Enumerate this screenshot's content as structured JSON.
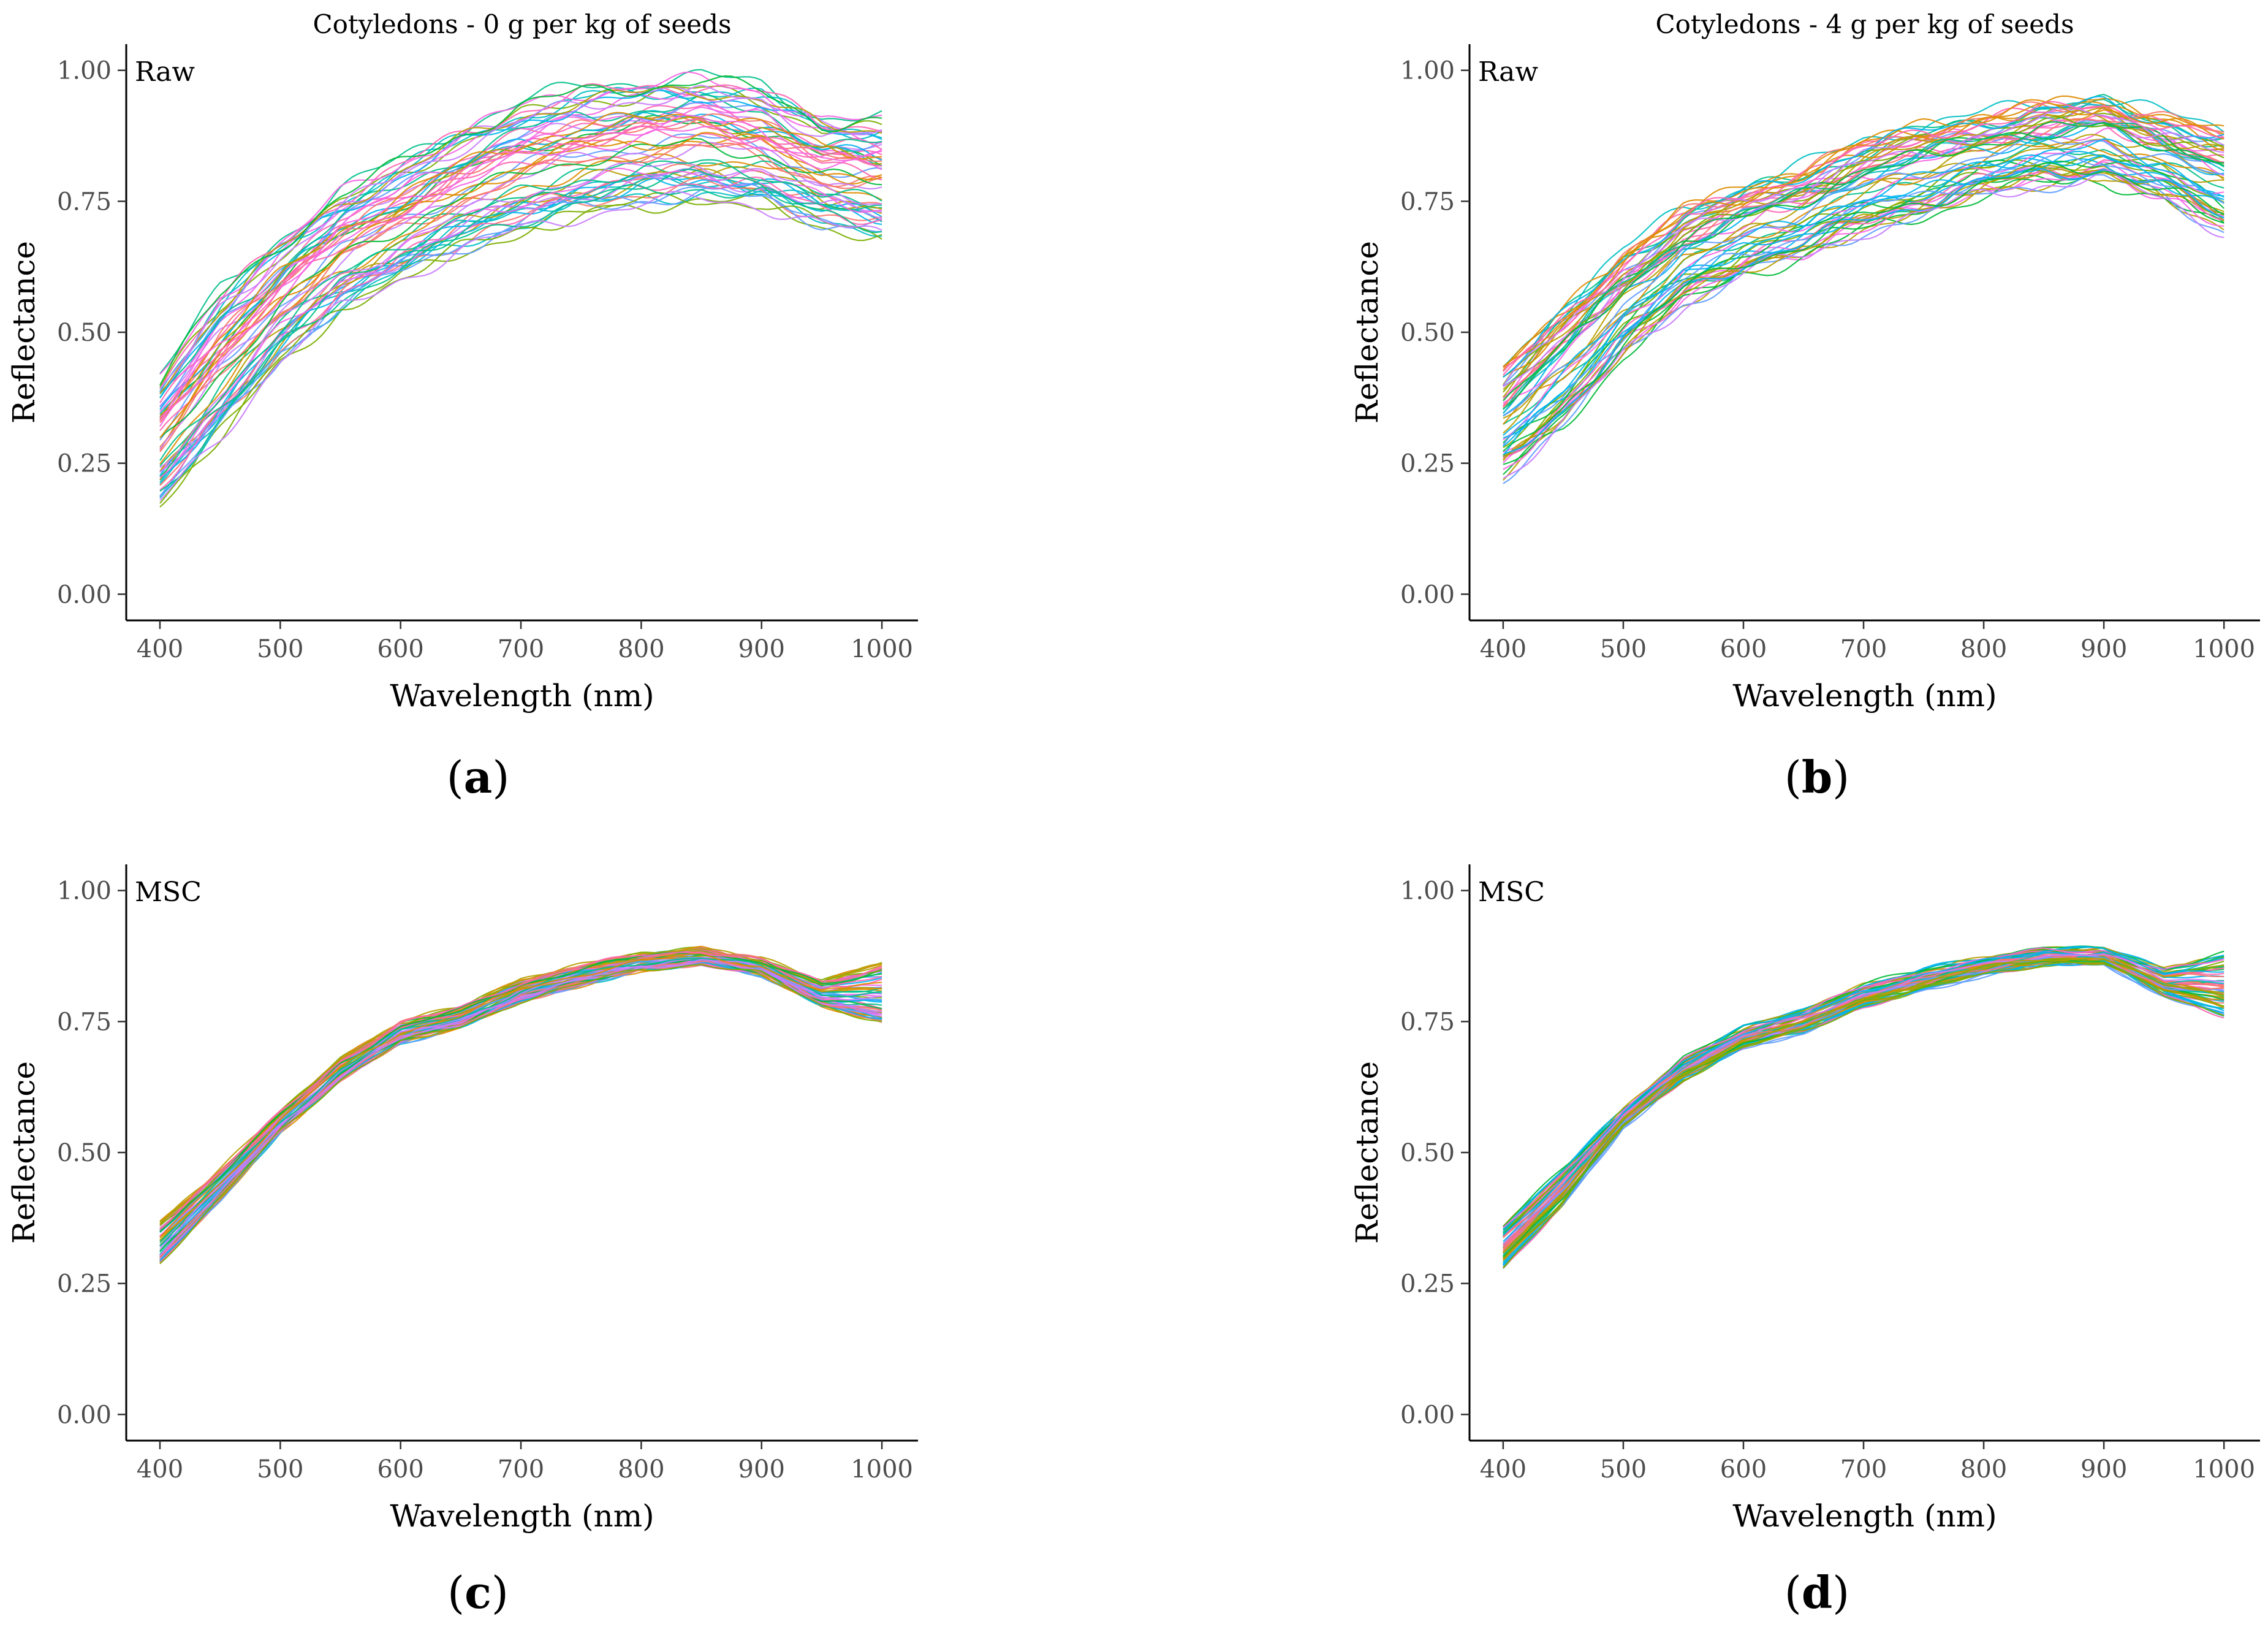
{
  "figure": {
    "panel_labels": [
      {
        "open": "(",
        "letter": "a",
        "close": ")"
      },
      {
        "open": "(",
        "letter": "b",
        "close": ")"
      },
      {
        "open": "(",
        "letter": "c",
        "close": ")"
      },
      {
        "open": "(",
        "letter": "d",
        "close": ")"
      }
    ]
  },
  "chart_data": [
    {
      "type": "line",
      "title": "Cotyledons - 0 g per kg of seeds",
      "annotation": "Raw",
      "xlabel": "Wavelength (nm)",
      "ylabel": "Reflectance",
      "xlim": [
        372,
        1030
      ],
      "ylim": [
        -0.05,
        1.05
      ],
      "xticks": [
        400,
        500,
        600,
        700,
        800,
        900,
        1000
      ],
      "yticks": [
        0.0,
        0.25,
        0.5,
        0.75,
        1.0
      ],
      "ytick_labels": [
        "0.00",
        "0.25",
        "0.50",
        "0.75",
        "1.00"
      ],
      "grid": false,
      "series_count": 60,
      "x_range": [
        400,
        1000
      ],
      "envelope": {
        "x": [
          400,
          450,
          500,
          550,
          600,
          650,
          700,
          750,
          800,
          850,
          900,
          950,
          1000
        ],
        "low": [
          0.17,
          0.3,
          0.44,
          0.54,
          0.6,
          0.65,
          0.69,
          0.72,
          0.74,
          0.75,
          0.74,
          0.7,
          0.68
        ],
        "high": [
          0.43,
          0.59,
          0.69,
          0.78,
          0.84,
          0.9,
          0.95,
          0.98,
          0.99,
          1.0,
          0.98,
          0.92,
          0.92
        ]
      },
      "colors": [
        "#F8766D",
        "#DE8C00",
        "#B79F00",
        "#7CAE00",
        "#00BA38",
        "#00C08B",
        "#00BFC4",
        "#00B4F0",
        "#619CFF",
        "#C77CFF",
        "#F564E3",
        "#FF64B0"
      ]
    },
    {
      "type": "line",
      "title": "Cotyledons - 4 g per kg of seeds",
      "annotation": "Raw",
      "xlabel": "Wavelength (nm)",
      "ylabel": "Reflectance",
      "xlim": [
        372,
        1030
      ],
      "ylim": [
        -0.05,
        1.05
      ],
      "xticks": [
        400,
        500,
        600,
        700,
        800,
        900,
        1000
      ],
      "yticks": [
        0.0,
        0.25,
        0.5,
        0.75,
        1.0
      ],
      "ytick_labels": [
        "0.00",
        "0.25",
        "0.50",
        "0.75",
        "1.00"
      ],
      "grid": false,
      "series_count": 60,
      "x_range": [
        400,
        1000
      ],
      "envelope": {
        "x": [
          400,
          450,
          500,
          550,
          600,
          650,
          700,
          750,
          800,
          850,
          900,
          950,
          1000
        ],
        "low": [
          0.22,
          0.32,
          0.45,
          0.55,
          0.61,
          0.64,
          0.69,
          0.72,
          0.76,
          0.78,
          0.79,
          0.75,
          0.69
        ],
        "high": [
          0.44,
          0.55,
          0.66,
          0.74,
          0.78,
          0.82,
          0.87,
          0.9,
          0.92,
          0.94,
          0.95,
          0.92,
          0.89
        ]
      },
      "colors": [
        "#F8766D",
        "#DE8C00",
        "#B79F00",
        "#7CAE00",
        "#00BA38",
        "#00C08B",
        "#00BFC4",
        "#00B4F0",
        "#619CFF",
        "#C77CFF",
        "#F564E3",
        "#FF64B0"
      ]
    },
    {
      "type": "line",
      "title": "",
      "annotation": "MSC",
      "xlabel": "Wavelength (nm)",
      "ylabel": "Reflectance",
      "xlim": [
        372,
        1030
      ],
      "ylim": [
        -0.05,
        1.05
      ],
      "xticks": [
        400,
        500,
        600,
        700,
        800,
        900,
        1000
      ],
      "yticks": [
        0.0,
        0.25,
        0.5,
        0.75,
        1.0
      ],
      "ytick_labels": [
        "0.00",
        "0.25",
        "0.50",
        "0.75",
        "1.00"
      ],
      "grid": false,
      "series_count": 60,
      "x_range": [
        400,
        1000
      ],
      "envelope": {
        "x": [
          400,
          450,
          500,
          550,
          600,
          650,
          700,
          750,
          800,
          850,
          900,
          950,
          1000
        ],
        "low": [
          0.29,
          0.41,
          0.54,
          0.64,
          0.71,
          0.74,
          0.79,
          0.82,
          0.85,
          0.86,
          0.84,
          0.78,
          0.75
        ],
        "high": [
          0.37,
          0.47,
          0.58,
          0.68,
          0.75,
          0.78,
          0.83,
          0.86,
          0.88,
          0.89,
          0.87,
          0.83,
          0.87
        ]
      },
      "colors": [
        "#F8766D",
        "#DE8C00",
        "#B79F00",
        "#7CAE00",
        "#00BA38",
        "#00C08B",
        "#00BFC4",
        "#00B4F0",
        "#619CFF",
        "#C77CFF",
        "#F564E3",
        "#FF64B0"
      ]
    },
    {
      "type": "line",
      "title": "",
      "annotation": "MSC",
      "xlabel": "Wavelength (nm)",
      "ylabel": "Reflectance",
      "xlim": [
        372,
        1030
      ],
      "ylim": [
        -0.05,
        1.05
      ],
      "xticks": [
        400,
        500,
        600,
        700,
        800,
        900,
        1000
      ],
      "yticks": [
        0.0,
        0.25,
        0.5,
        0.75,
        1.0
      ],
      "ytick_labels": [
        "0.00",
        "0.25",
        "0.50",
        "0.75",
        "1.00"
      ],
      "grid": false,
      "series_count": 60,
      "x_range": [
        400,
        1000
      ],
      "envelope": {
        "x": [
          400,
          450,
          500,
          550,
          600,
          650,
          700,
          750,
          800,
          850,
          900,
          950,
          1000
        ],
        "low": [
          0.28,
          0.4,
          0.55,
          0.64,
          0.7,
          0.73,
          0.78,
          0.81,
          0.84,
          0.86,
          0.86,
          0.8,
          0.76
        ],
        "high": [
          0.36,
          0.47,
          0.58,
          0.68,
          0.74,
          0.77,
          0.82,
          0.85,
          0.87,
          0.89,
          0.89,
          0.85,
          0.88
        ]
      },
      "colors": [
        "#F8766D",
        "#DE8C00",
        "#B79F00",
        "#7CAE00",
        "#00BA38",
        "#00C08B",
        "#00BFC4",
        "#00B4F0",
        "#619CFF",
        "#C77CFF",
        "#F564E3",
        "#FF64B0"
      ]
    }
  ]
}
